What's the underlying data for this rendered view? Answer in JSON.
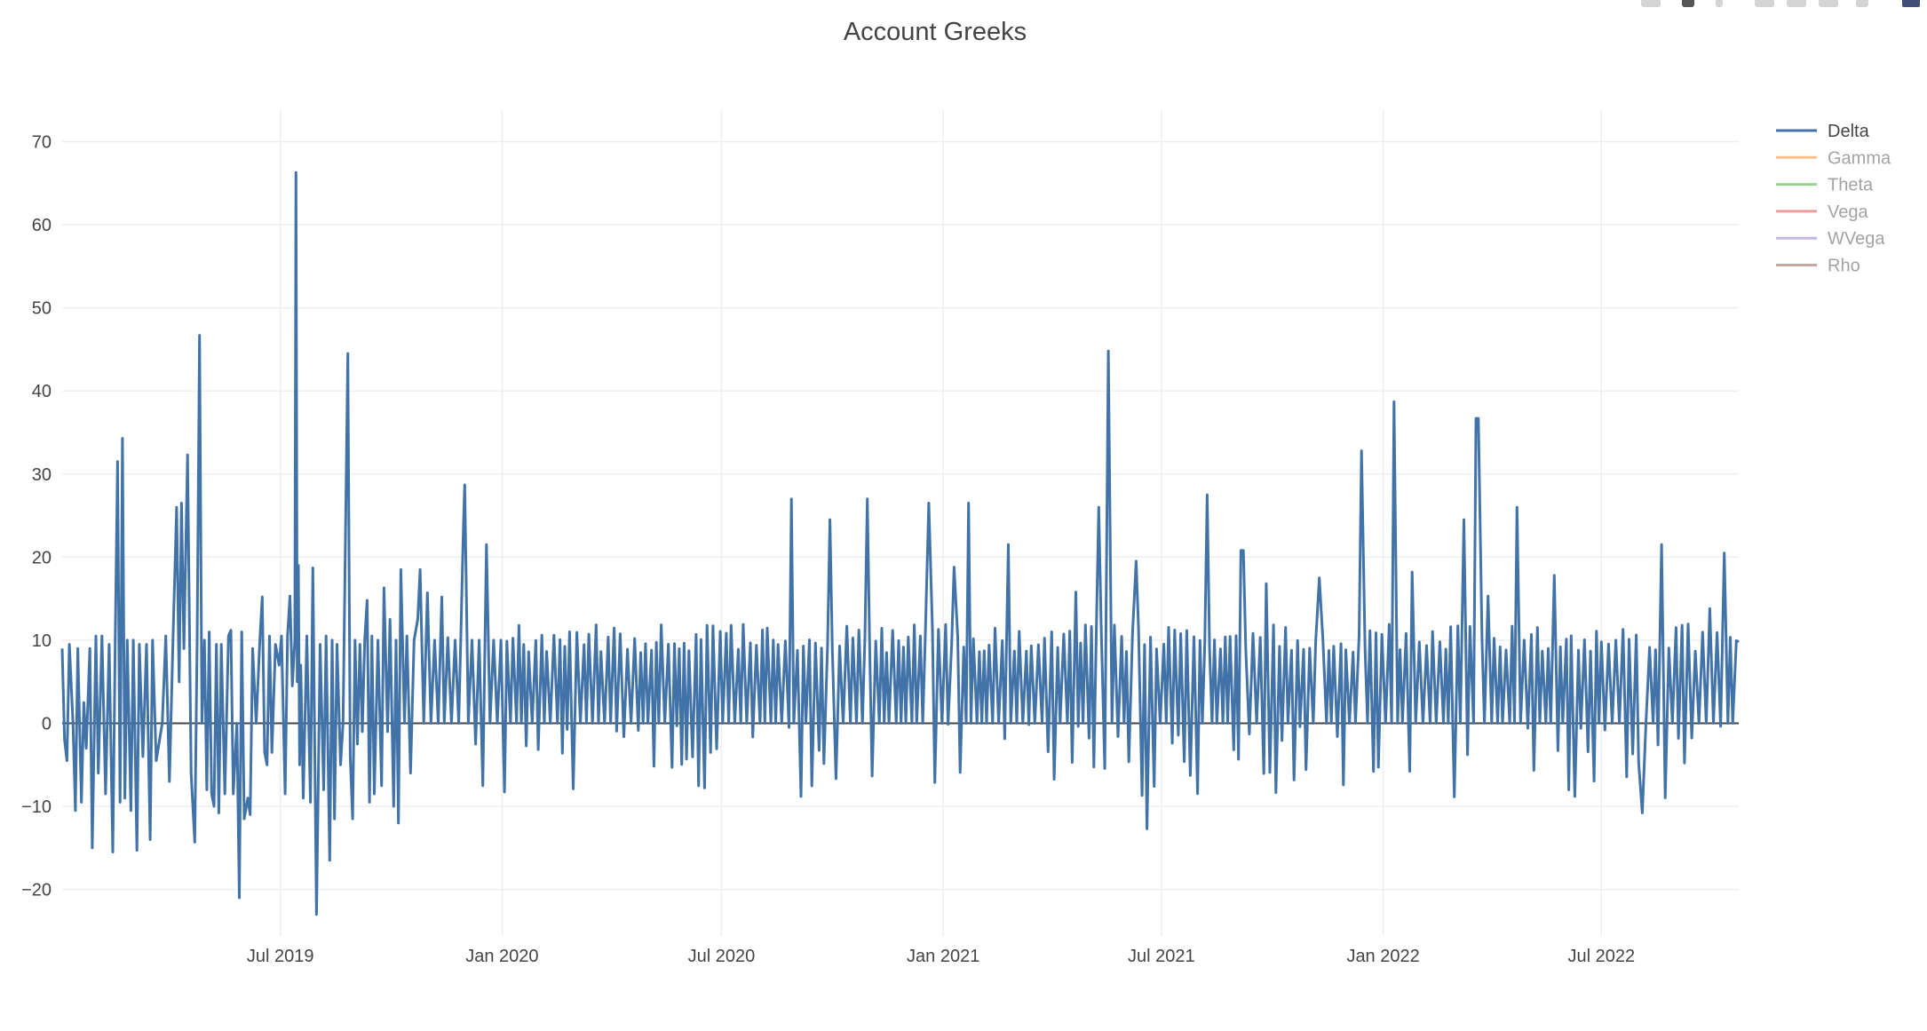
{
  "chart_data": {
    "type": "line",
    "title": "Account Greeks",
    "xlabel": "",
    "ylabel": "",
    "x_range": [
      "2019-01-01",
      "2022-10-23"
    ],
    "ylim": [
      -25.6,
      73.8
    ],
    "y_ticks": [
      70,
      60,
      50,
      40,
      30,
      20,
      10,
      0,
      -10,
      -20
    ],
    "y_tick_labels": [
      "70",
      "60",
      "50",
      "40",
      "30",
      "20",
      "10",
      "0",
      "−10",
      "−20"
    ],
    "x_ticks": [
      {
        "date": "2019-07-01",
        "label": "Jul 2019"
      },
      {
        "date": "2020-01-01",
        "label": "Jan 2020"
      },
      {
        "date": "2020-07-01",
        "label": "Jul 2020"
      },
      {
        "date": "2021-01-01",
        "label": "Jan 2021"
      },
      {
        "date": "2021-07-01",
        "label": "Jul 2021"
      },
      {
        "date": "2022-01-01",
        "label": "Jan 2022"
      },
      {
        "date": "2022-07-01",
        "label": "Jul 2022"
      }
    ],
    "grid": true,
    "legend_position": "top-right",
    "series": [
      {
        "name": "Delta",
        "color": "#4273a8",
        "visible": true,
        "points": [
          [
            "2019-01-01",
            9
          ],
          [
            "2019-01-03",
            -2
          ],
          [
            "2019-01-05",
            -4.5
          ],
          [
            "2019-01-07",
            9.5
          ],
          [
            "2019-01-10",
            0
          ],
          [
            "2019-01-12",
            -10.5
          ],
          [
            "2019-01-14",
            9
          ],
          [
            "2019-01-17",
            -9.5
          ],
          [
            "2019-01-19",
            2.5
          ],
          [
            "2019-01-21",
            -3
          ],
          [
            "2019-01-24",
            9
          ],
          [
            "2019-01-26",
            -15
          ],
          [
            "2019-01-29",
            10.5
          ],
          [
            "2019-01-31",
            -6
          ],
          [
            "2019-02-03",
            10.5
          ],
          [
            "2019-02-06",
            -8.5
          ],
          [
            "2019-02-09",
            9.5
          ],
          [
            "2019-02-12",
            -15.5
          ],
          [
            "2019-02-14",
            9.5
          ],
          [
            "2019-02-16",
            31.5
          ],
          [
            "2019-02-18",
            -9.5
          ],
          [
            "2019-02-20",
            34.3
          ],
          [
            "2019-02-22",
            -9
          ],
          [
            "2019-02-24",
            10
          ],
          [
            "2019-02-27",
            -10.5
          ],
          [
            "2019-03-01",
            10
          ],
          [
            "2019-03-04",
            -15.3
          ],
          [
            "2019-03-06",
            9.5
          ],
          [
            "2019-03-09",
            -4
          ],
          [
            "2019-03-12",
            9.5
          ],
          [
            "2019-03-15",
            -14
          ],
          [
            "2019-03-17",
            10
          ],
          [
            "2019-03-20",
            -4.5
          ],
          [
            "2019-03-25",
            0
          ],
          [
            "2019-03-28",
            10.5
          ],
          [
            "2019-03-31",
            -7
          ],
          [
            "2019-04-03",
            10.5
          ],
          [
            "2019-04-06",
            26
          ],
          [
            "2019-04-08",
            5
          ],
          [
            "2019-04-10",
            26.5
          ],
          [
            "2019-04-12",
            9
          ],
          [
            "2019-04-15",
            32.3
          ],
          [
            "2019-04-18",
            -6
          ],
          [
            "2019-04-21",
            -14.3
          ],
          [
            "2019-04-23",
            10
          ],
          [
            "2019-04-25",
            46.7
          ],
          [
            "2019-04-27",
            0
          ],
          [
            "2019-04-29",
            10
          ],
          [
            "2019-05-01",
            -8
          ],
          [
            "2019-05-03",
            11
          ],
          [
            "2019-05-05",
            -8.5
          ],
          [
            "2019-05-07",
            -10
          ],
          [
            "2019-05-09",
            9.5
          ],
          [
            "2019-05-11",
            -10.8
          ],
          [
            "2019-05-13",
            9.5
          ],
          [
            "2019-05-16",
            -8.5
          ],
          [
            "2019-05-19",
            10.5
          ],
          [
            "2019-05-21",
            11.2
          ],
          [
            "2019-05-23",
            -8.5
          ],
          [
            "2019-05-26",
            0
          ],
          [
            "2019-05-28",
            -21
          ],
          [
            "2019-05-30",
            11
          ],
          [
            "2019-06-01",
            -11.5
          ],
          [
            "2019-06-04",
            -9
          ],
          [
            "2019-06-06",
            -11
          ],
          [
            "2019-06-08",
            9
          ],
          [
            "2019-06-11",
            0
          ],
          [
            "2019-06-14",
            10
          ],
          [
            "2019-06-16",
            15.2
          ],
          [
            "2019-06-18",
            -3.5
          ],
          [
            "2019-06-20",
            -5
          ],
          [
            "2019-06-22",
            10.5
          ],
          [
            "2019-06-24",
            -3.5
          ],
          [
            "2019-06-27",
            9.5
          ],
          [
            "2019-06-30",
            7
          ],
          [
            "2019-07-02",
            10.5
          ],
          [
            "2019-07-05",
            -8.5
          ],
          [
            "2019-07-07",
            10.5
          ],
          [
            "2019-07-09",
            15.3
          ],
          [
            "2019-07-11",
            4.5
          ],
          [
            "2019-07-13",
            10
          ],
          [
            "2019-07-14",
            66.3
          ],
          [
            "2019-07-15",
            5
          ],
          [
            "2019-07-16",
            19
          ],
          [
            "2019-07-17",
            -5
          ],
          [
            "2019-07-18",
            7
          ],
          [
            "2019-07-20",
            -9
          ],
          [
            "2019-07-23",
            10.5
          ],
          [
            "2019-07-26",
            -9.5
          ],
          [
            "2019-07-28",
            18.7
          ],
          [
            "2019-07-31",
            -23
          ],
          [
            "2019-08-03",
            9.5
          ],
          [
            "2019-08-06",
            -8
          ],
          [
            "2019-08-08",
            10.5
          ],
          [
            "2019-08-11",
            -16.5
          ],
          [
            "2019-08-13",
            10
          ],
          [
            "2019-08-15",
            -11.5
          ],
          [
            "2019-08-17",
            9.5
          ],
          [
            "2019-08-20",
            -5
          ],
          [
            "2019-08-22",
            0
          ],
          [
            "2019-08-26",
            44.5
          ],
          [
            "2019-08-28",
            -4
          ],
          [
            "2019-08-30",
            -11.5
          ],
          [
            "2019-09-01",
            10
          ],
          [
            "2019-09-03",
            -2.5
          ],
          [
            "2019-09-05",
            9.5
          ],
          [
            "2019-09-07",
            -1
          ],
          [
            "2019-09-09",
            10
          ],
          [
            "2019-09-11",
            14.8
          ],
          [
            "2019-09-13",
            -9.5
          ],
          [
            "2019-09-15",
            10.5
          ],
          [
            "2019-09-17",
            -8.5
          ],
          [
            "2019-09-20",
            10
          ],
          [
            "2019-09-23",
            -7.5
          ],
          [
            "2019-09-25",
            16.3
          ],
          [
            "2019-09-28",
            -1
          ],
          [
            "2019-09-30",
            12.5
          ],
          [
            "2019-10-03",
            -10
          ],
          [
            "2019-10-05",
            10
          ],
          [
            "2019-10-07",
            -12
          ],
          [
            "2019-10-09",
            18.5
          ],
          [
            "2019-10-12",
            0
          ],
          [
            "2019-10-14",
            10.5
          ],
          [
            "2019-10-17",
            -6
          ],
          [
            "2019-10-20",
            10
          ],
          [
            "2019-10-23",
            12.5
          ],
          [
            "2019-10-25",
            18.5
          ],
          [
            "2019-10-28",
            0
          ],
          [
            "2019-10-31",
            15.7
          ],
          [
            "2019-11-03",
            0
          ],
          [
            "2019-11-06",
            10
          ],
          [
            "2019-11-09",
            0
          ],
          [
            "2019-11-12",
            15.2
          ],
          [
            "2019-11-14",
            0
          ],
          [
            "2019-11-17",
            10.3
          ],
          [
            "2019-11-20",
            0
          ],
          [
            "2019-11-23",
            10
          ],
          [
            "2019-11-26",
            0
          ],
          [
            "2019-11-30",
            24.2
          ],
          [
            "2019-12-01",
            28.7
          ],
          [
            "2019-12-04",
            0
          ],
          [
            "2019-12-07",
            10
          ],
          [
            "2019-12-10",
            -2.5
          ],
          [
            "2019-12-13",
            10
          ],
          [
            "2019-12-16",
            -7.5
          ],
          [
            "2019-12-19",
            21.5
          ],
          [
            "2019-12-22",
            0
          ],
          [
            "2019-12-25",
            10
          ],
          [
            "2019-12-28",
            0
          ],
          [
            "2019-12-31",
            10
          ]
        ]
      },
      {
        "name": "Gamma",
        "color": "#f7c38b",
        "visible": false,
        "points": []
      },
      {
        "name": "Theta",
        "color": "#97d492",
        "visible": false,
        "points": []
      },
      {
        "name": "Vega",
        "color": "#ee9b9b",
        "visible": false,
        "points": []
      },
      {
        "name": "WVega",
        "color": "#c3b8dd",
        "visible": false,
        "points": []
      },
      {
        "name": "Rho",
        "color": "#c1aaa2",
        "visible": false,
        "points": []
      }
    ]
  }
}
